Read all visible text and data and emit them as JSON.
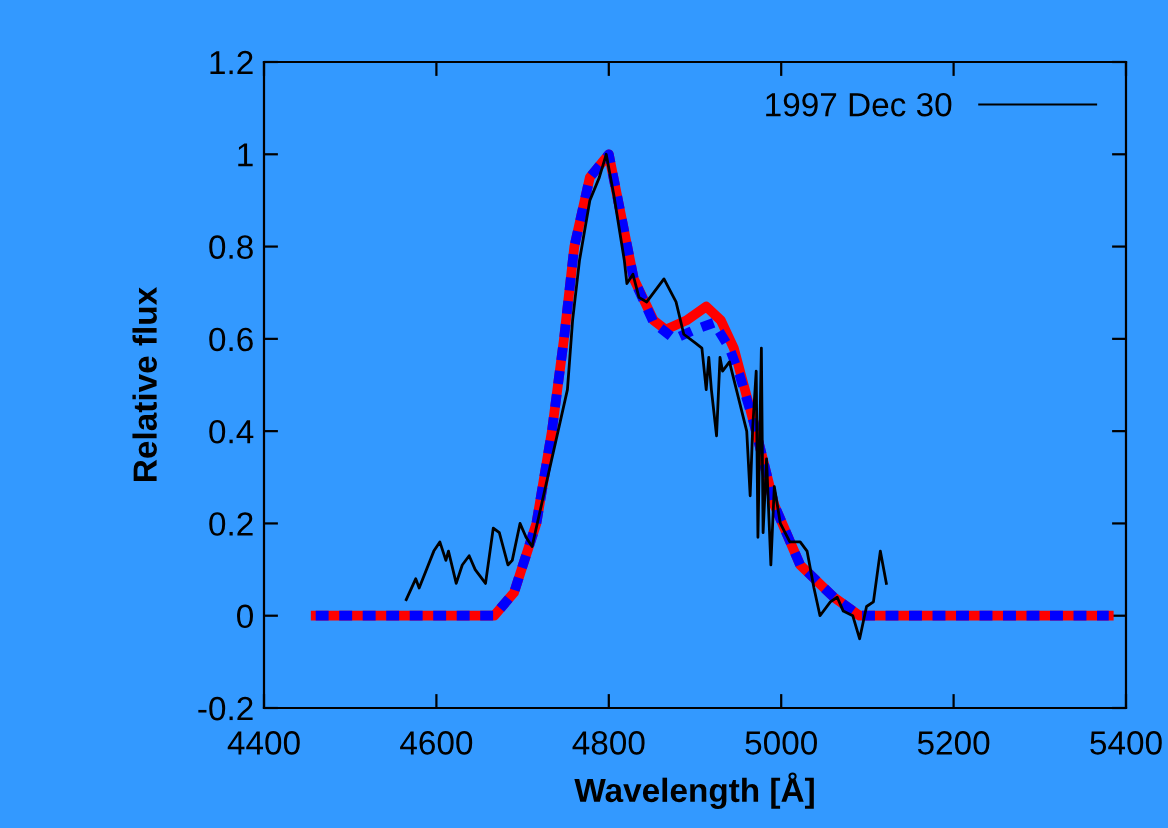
{
  "chart_data": {
    "type": "line",
    "xlabel": "Wavelength [Å]",
    "ylabel": "Relative flux",
    "xlim": [
      4400,
      5400
    ],
    "xticks": [
      4400,
      4600,
      4800,
      5000,
      5200,
      5400
    ],
    "ylim": [
      -0.2,
      1.2
    ],
    "yticks": [
      -0.2,
      0,
      0.2,
      0.4,
      0.6,
      0.8,
      1,
      1.2
    ],
    "grid": false,
    "legend": "top right",
    "marker": "none",
    "series": [
      {
        "name": "1997 Dec 30",
        "color": "#000000",
        "line_style": "solid",
        "x": [
          4565,
          4576,
          4580,
          4597,
          4604,
          4611,
          4614,
          4623,
          4630,
          4638,
          4645,
          4657,
          4666,
          4673,
          4683,
          4688,
          4697,
          4704,
          4711,
          4752,
          4758,
          4766,
          4778,
          4789,
          4797,
          4806,
          4818,
          4821,
          4828,
          4835,
          4844,
          4864,
          4878,
          4887,
          4901,
          4908,
          4913,
          4916,
          4919,
          4925,
          4929,
          4932,
          4940,
          4952,
          4960,
          4964,
          4967,
          4971,
          4973,
          4977,
          4979,
          4983,
          4988,
          4992,
          4999,
          5010,
          5022,
          5030,
          5038,
          5045,
          5057,
          5065,
          5072,
          5083,
          5091,
          5099,
          5107,
          5115,
          5122
        ],
        "values": [
          0.035,
          0.08,
          0.06,
          0.14,
          0.16,
          0.12,
          0.14,
          0.07,
          0.11,
          0.13,
          0.1,
          0.07,
          0.19,
          0.18,
          0.11,
          0.12,
          0.2,
          0.17,
          0.15,
          0.49,
          0.64,
          0.77,
          0.9,
          0.95,
          1.0,
          0.91,
          0.77,
          0.72,
          0.74,
          0.69,
          0.68,
          0.73,
          0.68,
          0.61,
          0.59,
          0.58,
          0.49,
          0.56,
          0.49,
          0.39,
          0.56,
          0.53,
          0.55,
          0.46,
          0.4,
          0.26,
          0.41,
          0.53,
          0.17,
          0.58,
          0.18,
          0.34,
          0.11,
          0.28,
          0.2,
          0.16,
          0.16,
          0.14,
          0.06,
          0.0,
          0.03,
          0.04,
          0.01,
          0.0,
          -0.05,
          0.02,
          0.03,
          0.14,
          0.07
        ]
      },
      {
        "color": "#ff0000",
        "line_style": "solid",
        "x": [
          4460,
          4667,
          4690,
          4716,
          4734,
          4748,
          4760,
          4778,
          4800,
          4829,
          4852,
          4866,
          4890,
          4913,
          4930,
          4945,
          4968,
          4992,
          5022,
          5061,
          5091,
          5380
        ],
        "values": [
          0,
          0,
          0.05,
          0.2,
          0.4,
          0.6,
          0.8,
          0.95,
          1.0,
          0.73,
          0.64,
          0.62,
          0.64,
          0.67,
          0.64,
          0.58,
          0.42,
          0.24,
          0.11,
          0.04,
          0.0,
          0
        ]
      },
      {
        "color": "#0000ff",
        "line_style": "dotted",
        "x": [
          4460,
          4667,
          4690,
          4716,
          4734,
          4748,
          4760,
          4778,
          4800,
          4829,
          4852,
          4876,
          4900,
          4922,
          4940,
          4952,
          4968,
          4992,
          5022,
          5061,
          5091,
          5380
        ],
        "values": [
          0,
          0,
          0.05,
          0.2,
          0.4,
          0.6,
          0.8,
          0.95,
          1.0,
          0.73,
          0.635,
          0.6,
          0.62,
          0.635,
          0.58,
          0.52,
          0.42,
          0.24,
          0.11,
          0.04,
          0.0,
          0
        ]
      }
    ]
  }
}
